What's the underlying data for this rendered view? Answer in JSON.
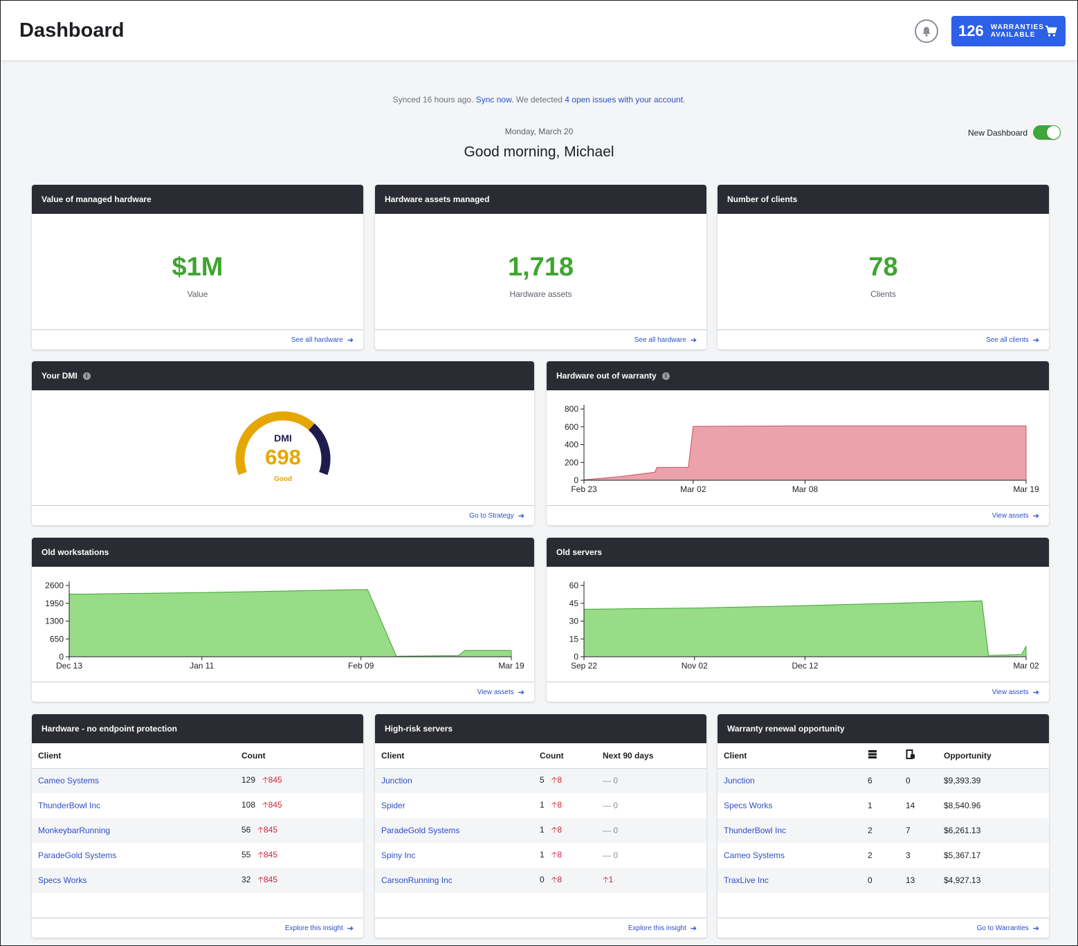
{
  "header": {
    "title": "Dashboard",
    "warranties_count": "126",
    "warranties_label": "WARRANTIES AVAILABLE"
  },
  "sync": {
    "prefix": "Synced 16 hours ago.",
    "sync_link": "Sync now.",
    "middle": "We detected",
    "issues_link": "4 open issues with your account",
    "suffix": "."
  },
  "date": "Monday, March 20",
  "greeting": "Good morning, Michael",
  "toggle_label": "New Dashboard",
  "metrics": [
    {
      "title": "Value of managed hardware",
      "value": "$1M",
      "sub": "Value",
      "link": "See all hardware"
    },
    {
      "title": "Hardware assets managed",
      "value": "1,718",
      "sub": "Hardware assets",
      "link": "See all hardware"
    },
    {
      "title": "Number of clients",
      "value": "78",
      "sub": "Clients",
      "link": "See all clients"
    }
  ],
  "dmi": {
    "title": "Your DMI",
    "label": "DMI",
    "value": "698",
    "rating": "Good",
    "link": "Go to Strategy",
    "color_good": "#e6a600",
    "color_dark": "#1f1c4d"
  },
  "warranty_chart": {
    "title": "Hardware out of warranty",
    "link": "View assets"
  },
  "workstations_chart": {
    "title": "Old workstations",
    "link": "View assets"
  },
  "servers_chart": {
    "title": "Old servers",
    "link": "View assets"
  },
  "chart_data": [
    {
      "type": "area",
      "title": "Hardware out of warranty",
      "x": [
        "Feb 23",
        "Feb 26",
        "Feb 28",
        "Feb 29",
        "Mar 01",
        "Mar 02",
        "Mar 08",
        "Mar 19"
      ],
      "x_ticks": [
        "Feb 23",
        "Mar 02",
        "Mar 08",
        "Mar 19"
      ],
      "series": [
        {
          "values": [
            5,
            40,
            90,
            145,
            145,
            605,
            610,
            610
          ]
        }
      ],
      "ylim": [
        0,
        800
      ],
      "y_ticks": [
        0,
        200,
        400,
        600,
        800
      ],
      "color": "#eba2ab"
    },
    {
      "type": "area",
      "title": "Old workstations",
      "x": [
        "Dec 13",
        "Jan 11",
        "Feb 09",
        "Feb 12",
        "Feb 14",
        "Feb 26",
        "Feb 28",
        "Mar 19"
      ],
      "x_ticks": [
        "Dec 13",
        "Jan 11",
        "Feb 09",
        "Mar 19"
      ],
      "series": [
        {
          "values": [
            2280,
            2340,
            2450,
            2450,
            20,
            40,
            230,
            230
          ]
        }
      ],
      "ylim": [
        0,
        2600
      ],
      "y_ticks": [
        0,
        650,
        1300,
        1950,
        2600
      ],
      "color": "#98dc87"
    },
    {
      "type": "area",
      "title": "Old servers",
      "x": [
        "Sep 22",
        "Nov 02",
        "Dec 12",
        "Feb 20",
        "Feb 22",
        "Mar 01",
        "Mar 02"
      ],
      "x_ticks": [
        "Sep 22",
        "Nov 02",
        "Dec 12",
        "Mar 02"
      ],
      "series": [
        {
          "values": [
            40,
            41,
            43,
            47,
            1,
            2,
            9
          ]
        }
      ],
      "ylim": [
        0,
        60
      ],
      "y_ticks": [
        0,
        15,
        30,
        45,
        60
      ],
      "color": "#98dc87"
    }
  ],
  "endpoint": {
    "title": "Hardware - no endpoint protection",
    "cols": [
      "Client",
      "Count"
    ],
    "rows": [
      {
        "client": "Cameo Systems",
        "count": "129",
        "delta": "845"
      },
      {
        "client": "ThunderBowl Inc",
        "count": "108",
        "delta": "845"
      },
      {
        "client": "MonkeybarRunning",
        "count": "56",
        "delta": "845"
      },
      {
        "client": "ParadeGold Systems",
        "count": "55",
        "delta": "845"
      },
      {
        "client": "Specs Works",
        "count": "32",
        "delta": "845"
      }
    ],
    "link": "Explore this insight"
  },
  "servers": {
    "title": "High-risk servers",
    "cols": [
      "Client",
      "Count",
      "Next 90 days"
    ],
    "rows": [
      {
        "client": "Junction",
        "count": "5",
        "delta": "8",
        "next": "0",
        "next_dir": "flat"
      },
      {
        "client": "Spider",
        "count": "1",
        "delta": "8",
        "next": "0",
        "next_dir": "flat"
      },
      {
        "client": "ParadeGold Systems",
        "count": "1",
        "delta": "8",
        "next": "0",
        "next_dir": "flat"
      },
      {
        "client": "Spiny Inc",
        "count": "1",
        "delta": "8",
        "next": "0",
        "next_dir": "flat"
      },
      {
        "client": "CarsonRunning Inc",
        "count": "0",
        "delta": "8",
        "next": "1",
        "next_dir": "up"
      }
    ],
    "link": "Explore this insight"
  },
  "renewal": {
    "title": "Warranty renewal opportunity",
    "cols": [
      "Client",
      "Opportunity"
    ],
    "col_icons": [
      "server-icon",
      "workstation-icon"
    ],
    "rows": [
      {
        "client": "Junction",
        "a": "6",
        "b": "0",
        "opp": "$9,393.39"
      },
      {
        "client": "Specs Works",
        "a": "1",
        "b": "14",
        "opp": "$8,540.96"
      },
      {
        "client": "ThunderBowl Inc",
        "a": "2",
        "b": "7",
        "opp": "$6,261.13"
      },
      {
        "client": "Cameo Systems",
        "a": "2",
        "b": "3",
        "opp": "$5,367.17"
      },
      {
        "client": "TraxLive Inc",
        "a": "0",
        "b": "13",
        "opp": "$4,927.13"
      }
    ],
    "link": "Go to Warranties"
  }
}
